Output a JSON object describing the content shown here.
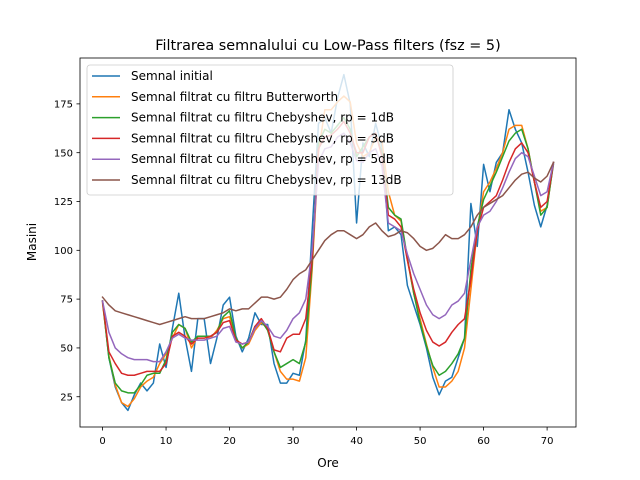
{
  "chart_data": {
    "type": "line",
    "title": "Filtrarea semnalului cu Low-Pass filters (fsz = 5)",
    "xlabel": "Ore",
    "ylabel": "Masini",
    "xlim": [
      -3.55,
      74.55
    ],
    "ylim": [
      9.5,
      198.5
    ],
    "xticks": [
      0,
      10,
      20,
      30,
      40,
      50,
      60,
      70
    ],
    "yticks": [
      25,
      50,
      75,
      100,
      125,
      150,
      175
    ],
    "grid": false,
    "legend_position": "top-left",
    "x": [
      0,
      1,
      2,
      3,
      4,
      5,
      6,
      7,
      8,
      9,
      10,
      11,
      12,
      13,
      14,
      15,
      16,
      17,
      18,
      19,
      20,
      21,
      22,
      23,
      24,
      25,
      26,
      27,
      28,
      29,
      30,
      31,
      32,
      33,
      34,
      35,
      36,
      37,
      38,
      39,
      40,
      41,
      42,
      43,
      44,
      45,
      46,
      47,
      48,
      49,
      50,
      51,
      52,
      53,
      54,
      55,
      56,
      57,
      58,
      59,
      60,
      61,
      62,
      63,
      64,
      65,
      66,
      67,
      68,
      69,
      70,
      71
    ],
    "series": [
      {
        "name": "Semnal initial",
        "color": "#1f77b4",
        "values": [
          74,
          45,
          30,
          22,
          18,
          26,
          32,
          28,
          32,
          52,
          40,
          60,
          78,
          55,
          38,
          65,
          65,
          42,
          55,
          72,
          76,
          56,
          48,
          55,
          68,
          62,
          62,
          42,
          32,
          32,
          37,
          36,
          54,
          110,
          165,
          168,
          160,
          178,
          190,
          175,
          114,
          155,
          148,
          165,
          153,
          110,
          112,
          108,
          82,
          72,
          62,
          50,
          35,
          26,
          33,
          35,
          45,
          55,
          124,
          102,
          144,
          130,
          145,
          150,
          172,
          162,
          155,
          140,
          123,
          112,
          123,
          144
        ]
      },
      {
        "name": "Semnal filtrat cu filtru Butterworth",
        "color": "#ff7f0e",
        "values": [
          73,
          46,
          31,
          22,
          20,
          24,
          30,
          33,
          35,
          42,
          47,
          55,
          62,
          60,
          50,
          56,
          56,
          55,
          59,
          65,
          66,
          55,
          50,
          52,
          59,
          63,
          60,
          48,
          38,
          34,
          34,
          33,
          45,
          90,
          150,
          172,
          172,
          176,
          179,
          176,
          155,
          148,
          150,
          158,
          156,
          130,
          118,
          115,
          95,
          78,
          65,
          52,
          40,
          30,
          30,
          33,
          38,
          50,
          80,
          110,
          130,
          135,
          142,
          150,
          162,
          164,
          164,
          152,
          135,
          120,
          122,
          145
        ]
      },
      {
        "name": "Semnal filtrat cu filtru Chebyshev, rp = 1dB",
        "color": "#2ca02c",
        "values": [
          74,
          45,
          32,
          28,
          27,
          27,
          31,
          36,
          37,
          37,
          44,
          58,
          62,
          60,
          53,
          56,
          56,
          56,
          58,
          66,
          69,
          55,
          50,
          53,
          61,
          64,
          59,
          48,
          40,
          42,
          44,
          42,
          53,
          93,
          155,
          162,
          160,
          164,
          168,
          162,
          148,
          153,
          158,
          160,
          150,
          122,
          118,
          116,
          96,
          78,
          63,
          51,
          41,
          36,
          38,
          42,
          47,
          55,
          90,
          112,
          126,
          133,
          140,
          148,
          156,
          160,
          162,
          152,
          135,
          118,
          122,
          145
        ]
      },
      {
        "name": "Semnal filtrat cu filtru Chebyshev, rp = 3dB",
        "color": "#d62728",
        "values": [
          74,
          48,
          42,
          37,
          36,
          36,
          37,
          38,
          38,
          38,
          42,
          56,
          58,
          56,
          52,
          55,
          55,
          56,
          58,
          63,
          64,
          54,
          52,
          53,
          61,
          65,
          60,
          49,
          48,
          55,
          57,
          57,
          65,
          95,
          152,
          158,
          159,
          162,
          166,
          160,
          150,
          150,
          158,
          160,
          148,
          118,
          116,
          112,
          95,
          80,
          68,
          59,
          53,
          51,
          53,
          58,
          62,
          65,
          85,
          110,
          122,
          125,
          128,
          136,
          145,
          152,
          155,
          150,
          135,
          122,
          125,
          145
        ]
      },
      {
        "name": "Semnal filtrat cu filtru Chebyshev, rp = 5dB",
        "color": "#9467bd",
        "values": [
          74,
          58,
          50,
          47,
          45,
          44,
          44,
          44,
          43,
          43,
          48,
          55,
          57,
          55,
          54,
          54,
          54,
          55,
          56,
          60,
          61,
          53,
          52,
          53,
          60,
          64,
          61,
          56,
          55,
          59,
          65,
          68,
          75,
          100,
          145,
          152,
          153,
          158,
          160,
          155,
          146,
          145,
          150,
          152,
          143,
          114,
          112,
          110,
          98,
          88,
          80,
          72,
          67,
          65,
          67,
          72,
          74,
          78,
          95,
          112,
          118,
          120,
          125,
          132,
          140,
          147,
          150,
          148,
          138,
          128,
          130,
          145
        ]
      },
      {
        "name": "Semnal filtrat cu filtru Chebyshev, rp = 13dB",
        "color": "#8c564b",
        "values": [
          76,
          72,
          69,
          68,
          67,
          66,
          65,
          64,
          63,
          62,
          63,
          64,
          65,
          66,
          65,
          65,
          65,
          66,
          67,
          68,
          70,
          69,
          70,
          70,
          73,
          76,
          76,
          75,
          76,
          80,
          85,
          88,
          90,
          95,
          100,
          105,
          108,
          110,
          110,
          108,
          106,
          108,
          112,
          114,
          110,
          107,
          108,
          110,
          109,
          106,
          102,
          100,
          101,
          104,
          108,
          106,
          106,
          108,
          112,
          118,
          122,
          124,
          126,
          128,
          132,
          136,
          139,
          140,
          137,
          135,
          138,
          145
        ]
      }
    ]
  }
}
